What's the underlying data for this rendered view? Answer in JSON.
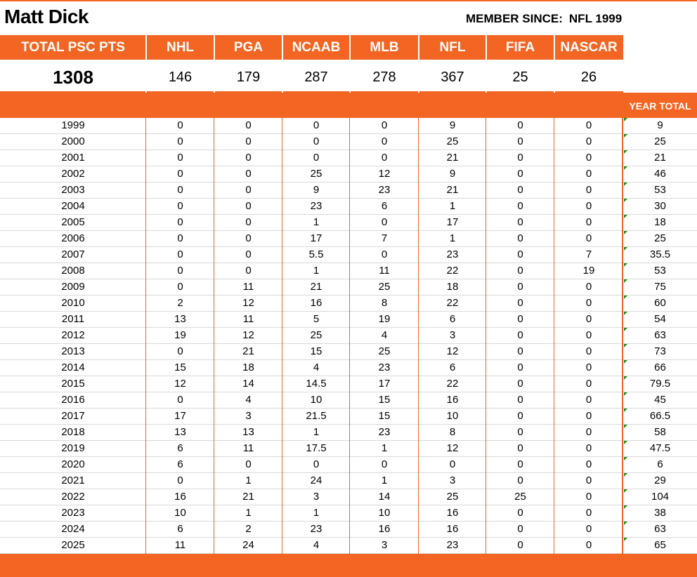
{
  "title": "Matt Dick",
  "member_since": {
    "label": "MEMBER SINCE:",
    "value": "NFL 1999"
  },
  "headers": [
    "TOTAL PSC PTS",
    "NHL",
    "PGA",
    "NCAAB",
    "MLB",
    "NFL",
    "FIFA",
    "NASCAR"
  ],
  "totals": [
    "1308",
    "146",
    "179",
    "287",
    "278",
    "367",
    "25",
    "26"
  ],
  "year_total_label": "YEAR TOTAL",
  "colors": {
    "accent": "#f26522",
    "grid_line": "#d9d9d9",
    "marker": "#1e8a1e"
  },
  "rows": [
    {
      "year": "1999",
      "values": [
        "0",
        "0",
        "0",
        "0",
        "9",
        "0",
        "0"
      ],
      "total": "9"
    },
    {
      "year": "2000",
      "values": [
        "0",
        "0",
        "0",
        "0",
        "25",
        "0",
        "0"
      ],
      "total": "25"
    },
    {
      "year": "2001",
      "values": [
        "0",
        "0",
        "0",
        "0",
        "21",
        "0",
        "0"
      ],
      "total": "21"
    },
    {
      "year": "2002",
      "values": [
        "0",
        "0",
        "25",
        "12",
        "9",
        "0",
        "0"
      ],
      "total": "46"
    },
    {
      "year": "2003",
      "values": [
        "0",
        "0",
        "9",
        "23",
        "21",
        "0",
        "0"
      ],
      "total": "53"
    },
    {
      "year": "2004",
      "values": [
        "0",
        "0",
        "23",
        "6",
        "1",
        "0",
        "0"
      ],
      "total": "30"
    },
    {
      "year": "2005",
      "values": [
        "0",
        "0",
        "1",
        "0",
        "17",
        "0",
        "0"
      ],
      "total": "18"
    },
    {
      "year": "2006",
      "values": [
        "0",
        "0",
        "17",
        "7",
        "1",
        "0",
        "0"
      ],
      "total": "25"
    },
    {
      "year": "2007",
      "values": [
        "0",
        "0",
        "5.5",
        "0",
        "23",
        "0",
        "7"
      ],
      "total": "35.5"
    },
    {
      "year": "2008",
      "values": [
        "0",
        "0",
        "1",
        "11",
        "22",
        "0",
        "19"
      ],
      "total": "53"
    },
    {
      "year": "2009",
      "values": [
        "0",
        "11",
        "21",
        "25",
        "18",
        "0",
        "0"
      ],
      "total": "75"
    },
    {
      "year": "2010",
      "values": [
        "2",
        "12",
        "16",
        "8",
        "22",
        "0",
        "0"
      ],
      "total": "60"
    },
    {
      "year": "2011",
      "values": [
        "13",
        "11",
        "5",
        "19",
        "6",
        "0",
        "0"
      ],
      "total": "54"
    },
    {
      "year": "2012",
      "values": [
        "19",
        "12",
        "25",
        "4",
        "3",
        "0",
        "0"
      ],
      "total": "63"
    },
    {
      "year": "2013",
      "values": [
        "0",
        "21",
        "15",
        "25",
        "12",
        "0",
        "0"
      ],
      "total": "73"
    },
    {
      "year": "2014",
      "values": [
        "15",
        "18",
        "4",
        "23",
        "6",
        "0",
        "0"
      ],
      "total": "66"
    },
    {
      "year": "2015",
      "values": [
        "12",
        "14",
        "14.5",
        "17",
        "22",
        "0",
        "0"
      ],
      "total": "79.5"
    },
    {
      "year": "2016",
      "values": [
        "0",
        "4",
        "10",
        "15",
        "16",
        "0",
        "0"
      ],
      "total": "45"
    },
    {
      "year": "2017",
      "values": [
        "17",
        "3",
        "21.5",
        "15",
        "10",
        "0",
        "0"
      ],
      "total": "66.5"
    },
    {
      "year": "2018",
      "values": [
        "13",
        "13",
        "1",
        "23",
        "8",
        "0",
        "0"
      ],
      "total": "58"
    },
    {
      "year": "2019",
      "values": [
        "6",
        "11",
        "17.5",
        "1",
        "12",
        "0",
        "0"
      ],
      "total": "47.5"
    },
    {
      "year": "2020",
      "values": [
        "6",
        "0",
        "0",
        "0",
        "0",
        "0",
        "0"
      ],
      "total": "6"
    },
    {
      "year": "2021",
      "values": [
        "0",
        "1",
        "24",
        "1",
        "3",
        "0",
        "0"
      ],
      "total": "29"
    },
    {
      "year": "2022",
      "values": [
        "16",
        "21",
        "3",
        "14",
        "25",
        "25",
        "0"
      ],
      "total": "104"
    },
    {
      "year": "2023",
      "values": [
        "10",
        "1",
        "1",
        "10",
        "16",
        "0",
        "0"
      ],
      "total": "38"
    },
    {
      "year": "2024",
      "values": [
        "6",
        "2",
        "23",
        "16",
        "16",
        "0",
        "0"
      ],
      "total": "63"
    },
    {
      "year": "2025",
      "values": [
        "11",
        "24",
        "4",
        "3",
        "23",
        "0",
        "0"
      ],
      "total": "65"
    }
  ]
}
